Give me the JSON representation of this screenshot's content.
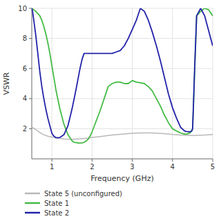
{
  "chart_data": {
    "type": "line",
    "xlabel": "Frequency (GHz)",
    "ylabel": "VSWR",
    "xlim": [
      0.5,
      5.0
    ],
    "ylim": [
      0,
      10
    ],
    "xticks": [
      1,
      2,
      3,
      4,
      5
    ],
    "yticks": [
      2,
      4,
      6,
      8,
      10
    ],
    "grid": true,
    "legend": "bottom",
    "series": [
      {
        "name": "State 5 (unconfigured)",
        "color": "#b8b8b8",
        "x": [
          0.5,
          0.6,
          0.7,
          0.8,
          0.9,
          1.0,
          1.1,
          1.2,
          1.3,
          1.5,
          1.7,
          1.9,
          2.0,
          2.2,
          2.5,
          2.8,
          3.0,
          3.2,
          3.5,
          3.8,
          4.0,
          4.2,
          4.5,
          4.8,
          5.0
        ],
        "values": [
          2.1,
          1.95,
          1.75,
          1.6,
          1.5,
          1.45,
          1.38,
          1.35,
          1.32,
          1.3,
          1.33,
          1.38,
          1.42,
          1.48,
          1.58,
          1.65,
          1.7,
          1.72,
          1.72,
          1.68,
          1.62,
          1.58,
          1.55,
          1.58,
          1.62
        ]
      },
      {
        "name": "State 1",
        "color": "#44bb44",
        "x": [
          0.5,
          0.6,
          0.7,
          0.75,
          0.8,
          0.85,
          0.9,
          0.95,
          1.0,
          1.05,
          1.1,
          1.2,
          1.3,
          1.4,
          1.5,
          1.55,
          1.6,
          1.65,
          1.7,
          1.75,
          1.8,
          1.85,
          1.9,
          1.95,
          2.0,
          2.1,
          2.2,
          2.4,
          2.5,
          2.6,
          2.7,
          2.8,
          2.9,
          3.0,
          3.1,
          3.2,
          3.3,
          3.4,
          3.5,
          3.6,
          3.7,
          3.8,
          3.9,
          4.0,
          4.1,
          4.2,
          4.25,
          4.3,
          4.35,
          4.4,
          4.45,
          4.5,
          4.6,
          4.7,
          4.8,
          4.9,
          5.0
        ],
        "values": [
          10.0,
          9.8,
          9.5,
          9.2,
          8.8,
          8.3,
          7.7,
          7.0,
          6.2,
          5.4,
          4.6,
          3.3,
          2.3,
          1.6,
          1.2,
          1.1,
          1.08,
          1.05,
          1.05,
          1.06,
          1.1,
          1.18,
          1.3,
          1.5,
          1.8,
          2.5,
          3.2,
          4.8,
          5.0,
          5.1,
          5.1,
          5.0,
          5.0,
          5.2,
          5.1,
          5.05,
          5.0,
          4.8,
          4.5,
          4.0,
          3.5,
          2.9,
          2.4,
          2.0,
          1.85,
          1.72,
          1.68,
          1.65,
          1.65,
          1.68,
          1.75,
          2.0,
          9.5,
          9.8,
          10.0,
          9.9,
          9.5
        ]
      },
      {
        "name": "State 2",
        "color": "#2222aa",
        "x": [
          0.5,
          0.52,
          0.55,
          0.6,
          0.65,
          0.7,
          0.75,
          0.8,
          0.85,
          0.9,
          0.95,
          1.0,
          1.05,
          1.1,
          1.15,
          1.2,
          1.3,
          1.4,
          1.5,
          1.6,
          1.7,
          1.75,
          1.8,
          1.85,
          1.9,
          2.0,
          2.1,
          2.2,
          2.3,
          2.4,
          2.5,
          2.6,
          2.7,
          2.8,
          2.9,
          3.0,
          3.1,
          3.15,
          3.2,
          3.3,
          3.4,
          3.5,
          3.6,
          3.7,
          3.8,
          3.9,
          4.0,
          4.1,
          4.2,
          4.3,
          4.35,
          4.4,
          4.42,
          4.45,
          4.48,
          4.5,
          4.52,
          4.55,
          4.6,
          4.7,
          4.8,
          4.9,
          5.0
        ],
        "values": [
          10.0,
          9.8,
          9.2,
          8.2,
          7.0,
          5.8,
          4.8,
          4.0,
          3.3,
          2.7,
          2.2,
          1.7,
          1.5,
          1.42,
          1.4,
          1.42,
          1.6,
          2.2,
          3.3,
          4.6,
          6.0,
          6.6,
          7.0,
          7.0,
          7.0,
          7.0,
          7.0,
          7.0,
          7.0,
          7.0,
          7.0,
          7.1,
          7.2,
          7.5,
          8.0,
          8.6,
          9.2,
          9.6,
          10.0,
          9.8,
          9.2,
          8.4,
          7.5,
          6.5,
          5.4,
          4.3,
          3.4,
          2.7,
          2.1,
          1.85,
          1.82,
          1.8,
          1.8,
          1.82,
          1.85,
          2.0,
          3.5,
          6.0,
          9.5,
          10.0,
          9.5,
          8.5,
          7.5
        ]
      }
    ]
  }
}
